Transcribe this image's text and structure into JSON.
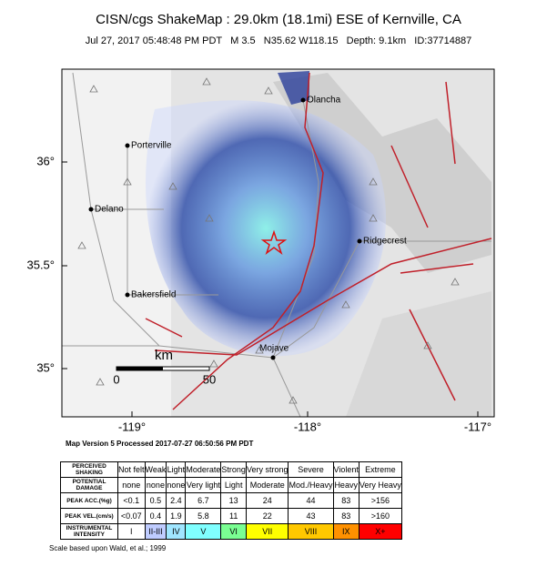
{
  "header": {
    "title": "CISN/cgs ShakeMap : 29.0km (18.1mi) ESE of Kernville, CA",
    "subtitle": "Jul 27, 2017 05:48:48 PM PDT   M 3.5   N35.62 W118.15   Depth: 9.1km   ID:37714887"
  },
  "map": {
    "lat_labels": [
      "36°",
      "35.5°",
      "35°"
    ],
    "lon_labels": [
      "-119°",
      "-118°",
      "-117°"
    ],
    "places": [
      "Olancha",
      "Porterville",
      "Delano",
      "Ridgecrest",
      "Bakersfield",
      "Mojave"
    ],
    "scale": {
      "unit": "km",
      "start": "0",
      "end": "50"
    }
  },
  "version": "Map Version 5 Processed 2017-07-27 06:50:56 PM PDT",
  "legend": {
    "rows": [
      {
        "label": "PERCEIVED SHAKING",
        "cells": [
          "Not felt",
          "Weak",
          "Light",
          "Moderate",
          "Strong",
          "Very strong",
          "Severe",
          "Violent",
          "Extreme"
        ]
      },
      {
        "label": "POTENTIAL DAMAGE",
        "cells": [
          "none",
          "none",
          "none",
          "Very light",
          "Light",
          "Moderate",
          "Mod./Heavy",
          "Heavy",
          "Very Heavy"
        ]
      },
      {
        "label": "PEAK ACC.(%g)",
        "cells": [
          "<0.1",
          "0.5",
          "2.4",
          "6.7",
          "13",
          "24",
          "44",
          "83",
          ">156"
        ]
      },
      {
        "label": "PEAK VEL.(cm/s)",
        "cells": [
          "<0.07",
          "0.4",
          "1.9",
          "5.8",
          "11",
          "22",
          "43",
          "83",
          ">160"
        ]
      },
      {
        "label": "INSTRUMENTAL INTENSITY",
        "cells": [
          "I",
          "II-III",
          "IV",
          "V",
          "VI",
          "VII",
          "VIII",
          "IX",
          "X+"
        ]
      }
    ]
  },
  "footnote": "Scale based upon Wald, et al.; 1999"
}
